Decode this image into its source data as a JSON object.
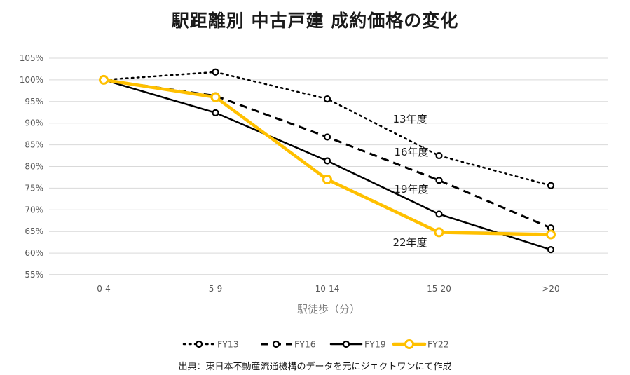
{
  "chart_data": {
    "type": "line",
    "title": "駅距離別 中古戸建 成約価格の変化",
    "xlabel": "駅徒歩（分）",
    "ylabel": "",
    "categories": [
      "0-4",
      "5-9",
      "10-14",
      "15-20",
      ">20"
    ],
    "y_ticks": [
      "55%",
      "60%",
      "65%",
      "70%",
      "75%",
      "80%",
      "85%",
      "90%",
      "95%",
      "100%",
      "105%"
    ],
    "ylim": [
      55,
      105
    ],
    "grid": "horizontal",
    "legend_position": "bottom",
    "series": [
      {
        "name": "FY13",
        "values": [
          100,
          101.8,
          95.6,
          82.5,
          75.6
        ],
        "color": "#000000",
        "style": "dotted",
        "label": "13年度"
      },
      {
        "name": "FY16",
        "values": [
          100,
          96.3,
          86.8,
          76.8,
          65.8
        ],
        "color": "#000000",
        "style": "dashed",
        "label": "16年度"
      },
      {
        "name": "FY19",
        "values": [
          100,
          92.4,
          81.3,
          69.0,
          60.8
        ],
        "color": "#000000",
        "style": "solid",
        "label": "19年度"
      },
      {
        "name": "FY22",
        "values": [
          100,
          96.0,
          77.0,
          64.8,
          64.3
        ],
        "color": "#FFC000",
        "style": "solid-thick",
        "label": "22年度"
      }
    ]
  },
  "source_note": "出典：東日本不動産流通機構のデータを元にジェクトワンにて作成"
}
